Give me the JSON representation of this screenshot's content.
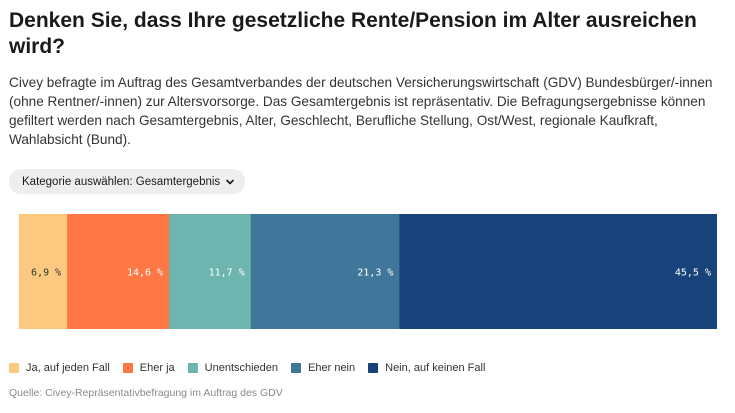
{
  "header": {
    "title": "Denken Sie, dass Ihre gesetzliche Rente/Pension im Alter ausreichen wird?",
    "description": "Civey befragte im Auftrag des Gesamtverbandes der deutschen Versicherungswirtschaft (GDV) Bundesbürger/-innen (ohne Rentner/-innen) zur Altersvorsorge. Das Gesamtergebnis ist repräsentativ. Die Befragungsergebnisse können gefiltert werden nach Gesamtergebnis, Alter, Geschlecht, Berufliche Stellung, Ost/West, regionale Kaufkraft, Wahlabsicht (Bund)."
  },
  "filter": {
    "label": "Kategorie auswählen: Gesamtergebnis",
    "icon": "chevron-down-icon"
  },
  "chart_data": {
    "type": "bar",
    "orientation": "horizontal-stacked-100",
    "categories": [
      "Gesamtergebnis"
    ],
    "series": [
      {
        "name": "Ja, auf jeden Fall",
        "value": 6.9,
        "label": "6,9 %",
        "color": "#fbc980",
        "label_color": "#333333"
      },
      {
        "name": "Eher ja",
        "value": 14.6,
        "label": "14,6 %",
        "color": "#fe7846",
        "label_color": "#ffffff"
      },
      {
        "name": "Unentschieden",
        "value": 11.7,
        "label": "11,7 %",
        "color": "#6db5ae",
        "label_color": "#ffffff"
      },
      {
        "name": "Eher nein",
        "value": 21.3,
        "label": "21,3 %",
        "color": "#3f7699",
        "label_color": "#ffffff"
      },
      {
        "name": "Nein, auf keinen Fall",
        "value": 45.5,
        "label": "45,5 %",
        "color": "#17427a",
        "label_color": "#ffffff"
      }
    ],
    "legend_position": "bottom-left"
  },
  "footer": {
    "source": "Quelle: Civey-Repräsentativbefragung im Auftrag des GDV"
  }
}
